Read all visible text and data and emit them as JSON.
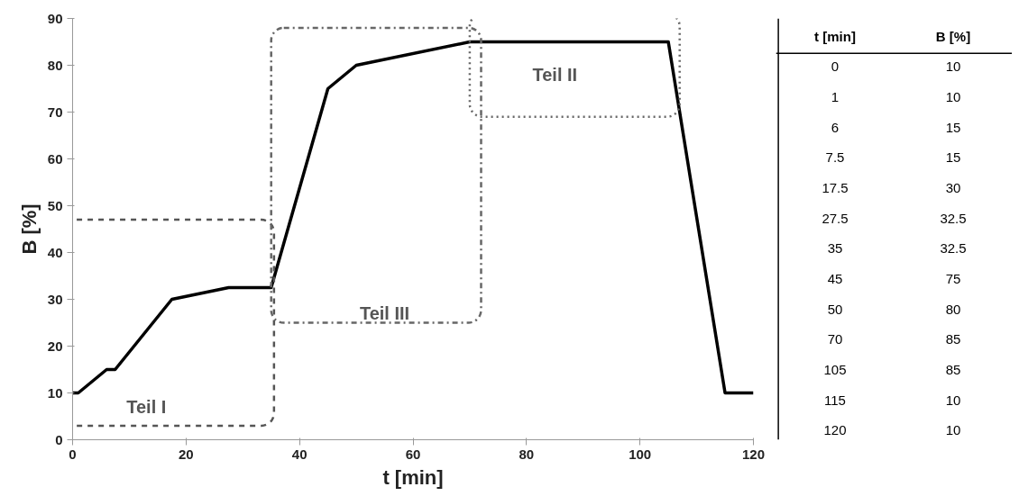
{
  "chart_data": [
    {
      "type": "line",
      "xlabel": "t [min]",
      "ylabel": "B [%]",
      "x": [
        0,
        1,
        6,
        7.5,
        17.5,
        27.5,
        35,
        45,
        50,
        70,
        105,
        115,
        120
      ],
      "series": [
        {
          "color": "#000000",
          "values": [
            10,
            10,
            15,
            15,
            30,
            32.5,
            32.5,
            75,
            80,
            85,
            85,
            10,
            10
          ]
        }
      ],
      "xlim": [
        0,
        120
      ],
      "ylim": [
        0,
        90
      ],
      "xticks": [
        0,
        20,
        40,
        60,
        80,
        100,
        120
      ],
      "yticks": [
        0,
        10,
        20,
        30,
        40,
        50,
        60,
        70,
        80,
        90
      ],
      "grid": false,
      "marker": "none",
      "line_style": "solid",
      "annotations": [
        "Teil I",
        "Teil II",
        "Teil III"
      ]
    },
    {
      "type": "other",
      "annotations": [
        "t [min]",
        "B [%]",
        "0",
        "10",
        "1",
        "10",
        "6",
        "15",
        "7.5",
        "15",
        "17.5",
        "30",
        "27.5",
        "32.5",
        "35",
        "32.5",
        "45",
        "75",
        "50",
        "80",
        "70",
        "85",
        "105",
        "85",
        "115",
        "10",
        "120",
        "10"
      ]
    }
  ]
}
